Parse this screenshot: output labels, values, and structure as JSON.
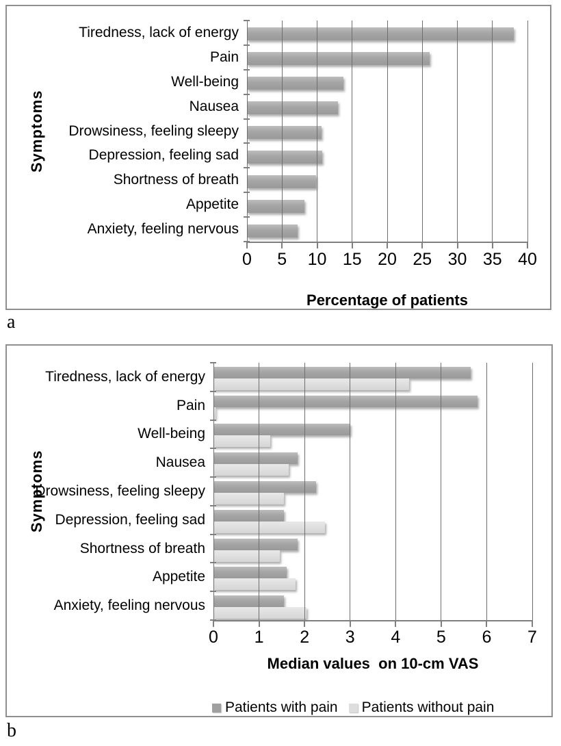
{
  "figure": {
    "panel_a_label": "a",
    "panel_b_label": "b"
  },
  "colors": {
    "bar_dark": "#a0a0a0",
    "bar_light": "#dedede",
    "gridline": "#6e6e6e",
    "border": "#8f8f8f"
  },
  "chart_data": [
    {
      "id": "a",
      "type": "bar",
      "orientation": "horizontal",
      "title": "",
      "xlabel": "Percentage of patients",
      "ylabel": "Symptoms",
      "categories": [
        "Tiredness, lack of energy",
        "Pain",
        "Well-being",
        "Nausea",
        "Drowsiness, feeling sleepy",
        "Depression, feeling sad",
        "Shortness of breath",
        "Appetite",
        "Anxiety, feeling nervous"
      ],
      "values": [
        38,
        26,
        13.8,
        13,
        10.6,
        10.7,
        9.9,
        8.2,
        7.2
      ],
      "bar_color": "#a0a0a0",
      "xlim": [
        0,
        40
      ],
      "xticks": [
        0,
        5,
        10,
        15,
        20,
        25,
        30,
        35,
        40
      ],
      "grid": true,
      "legend": null
    },
    {
      "id": "b",
      "type": "bar",
      "orientation": "horizontal",
      "title": "",
      "xlabel": "Median values  on 10-cm VAS",
      "ylabel": "Symptoms",
      "categories": [
        "Tiredness, lack of energy",
        "Pain",
        "Well-being",
        "Nausea",
        "Drowsiness, feeling sleepy",
        "Depression, feeling sad",
        "Shortness of breath",
        "Appetite",
        "Anxiety, feeling nervous"
      ],
      "series": [
        {
          "name": "Patients with pain",
          "color": "#a0a0a0",
          "values": [
            5.65,
            5.8,
            3.0,
            1.85,
            2.25,
            1.55,
            1.85,
            1.6,
            1.55
          ]
        },
        {
          "name": "Patients without pain",
          "color": "#dedede",
          "values": [
            4.3,
            0.05,
            1.25,
            1.65,
            1.55,
            2.45,
            1.45,
            1.8,
            2.05
          ]
        }
      ],
      "xlim": [
        0,
        7
      ],
      "xticks": [
        0,
        1,
        2,
        3,
        4,
        5,
        6,
        7
      ],
      "grid": true,
      "legend_position": "bottom"
    }
  ]
}
